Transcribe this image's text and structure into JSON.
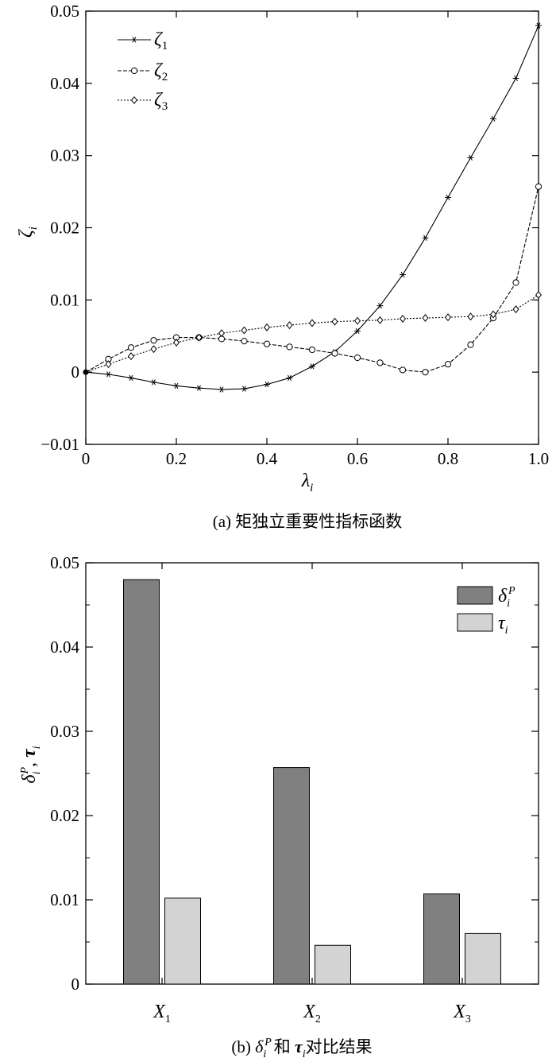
{
  "chart_data": [
    {
      "type": "line",
      "caption": "(a) 矩独立重要性指标函数",
      "xlabel": {
        "base": "λ",
        "sub": "i"
      },
      "ylabel": {
        "base": "ζ",
        "sub": "i"
      },
      "xlim": [
        0,
        1.0
      ],
      "ylim": [
        -0.01,
        0.05
      ],
      "xticks": [
        0,
        0.2,
        0.4,
        0.6,
        0.8,
        1.0
      ],
      "xtick_labels": [
        "0",
        "0.2",
        "0.4",
        "0.6",
        "0.8",
        "1.0"
      ],
      "yticks": [
        -0.01,
        0,
        0.01,
        0.02,
        0.03,
        0.04,
        0.05
      ],
      "ytick_labels": [
        "−0.01",
        "0",
        "0.01",
        "0.02",
        "0.03",
        "0.04",
        "0.05"
      ],
      "legend_position": "top-left",
      "x": [
        0,
        0.05,
        0.1,
        0.15,
        0.2,
        0.25,
        0.3,
        0.35,
        0.4,
        0.45,
        0.5,
        0.55,
        0.6,
        0.65,
        0.7,
        0.75,
        0.8,
        0.85,
        0.9,
        0.95,
        1.0
      ],
      "series": [
        {
          "name": {
            "base": "ζ",
            "sub": "1"
          },
          "marker": "asterisk",
          "dash": "solid",
          "values": [
            0,
            -0.0003,
            -0.0008,
            -0.0014,
            -0.0019,
            -0.0022,
            -0.0024,
            -0.0023,
            -0.0017,
            -0.0008,
            0.0008,
            0.0028,
            0.0057,
            0.0092,
            0.0135,
            0.0186,
            0.0242,
            0.0297,
            0.0351,
            0.0407,
            0.048
          ]
        },
        {
          "name": {
            "base": "ζ",
            "sub": "2"
          },
          "marker": "circle",
          "dash": "dashed",
          "values": [
            0,
            0.0018,
            0.0034,
            0.0044,
            0.0048,
            0.0048,
            0.0046,
            0.0043,
            0.0039,
            0.0035,
            0.0031,
            0.0026,
            0.002,
            0.0013,
            0.0003,
            0.0,
            0.0011,
            0.0038,
            0.0075,
            0.0124,
            0.0257
          ]
        },
        {
          "name": {
            "base": "ζ",
            "sub": "3"
          },
          "marker": "diamond",
          "dash": "dotted",
          "values": [
            0,
            0.0011,
            0.0022,
            0.0032,
            0.0041,
            0.0048,
            0.0054,
            0.0058,
            0.0062,
            0.0065,
            0.0068,
            0.007,
            0.0071,
            0.0072,
            0.0074,
            0.0075,
            0.0076,
            0.0077,
            0.008,
            0.0087,
            0.0107
          ]
        }
      ]
    },
    {
      "type": "bar",
      "caption": {
        "pre": "(b) ",
        "s1_base": "δ",
        "s1_sub": "i",
        "s1_sup": "P",
        "mid": "和 ",
        "s2_base": "τ",
        "s2_sub": "i",
        "post": "对比结果"
      },
      "ylabel": {
        "base1": "δ",
        "sub1": "i",
        "sup1": "P",
        "sep": ", ",
        "base2": "τ",
        "sub2": "i"
      },
      "categories": [
        {
          "base": "X",
          "sub": "1"
        },
        {
          "base": "X",
          "sub": "2"
        },
        {
          "base": "X",
          "sub": "3"
        }
      ],
      "ylim": [
        0,
        0.05
      ],
      "yticks": [
        0,
        0.01,
        0.02,
        0.03,
        0.04,
        0.05
      ],
      "ytick_labels": [
        "0",
        "0.01",
        "0.02",
        "0.03",
        "0.04",
        "0.05"
      ],
      "legend_position": "top-right",
      "series": [
        {
          "name": {
            "base": "δ",
            "sub": "i",
            "sup": "P"
          },
          "color": "#808080",
          "values": [
            0.048,
            0.0257,
            0.0107
          ]
        },
        {
          "name": {
            "base": "τ",
            "sub": "i"
          },
          "color": "#d3d3d3",
          "values": [
            0.0102,
            0.0046,
            0.006
          ]
        }
      ]
    }
  ]
}
